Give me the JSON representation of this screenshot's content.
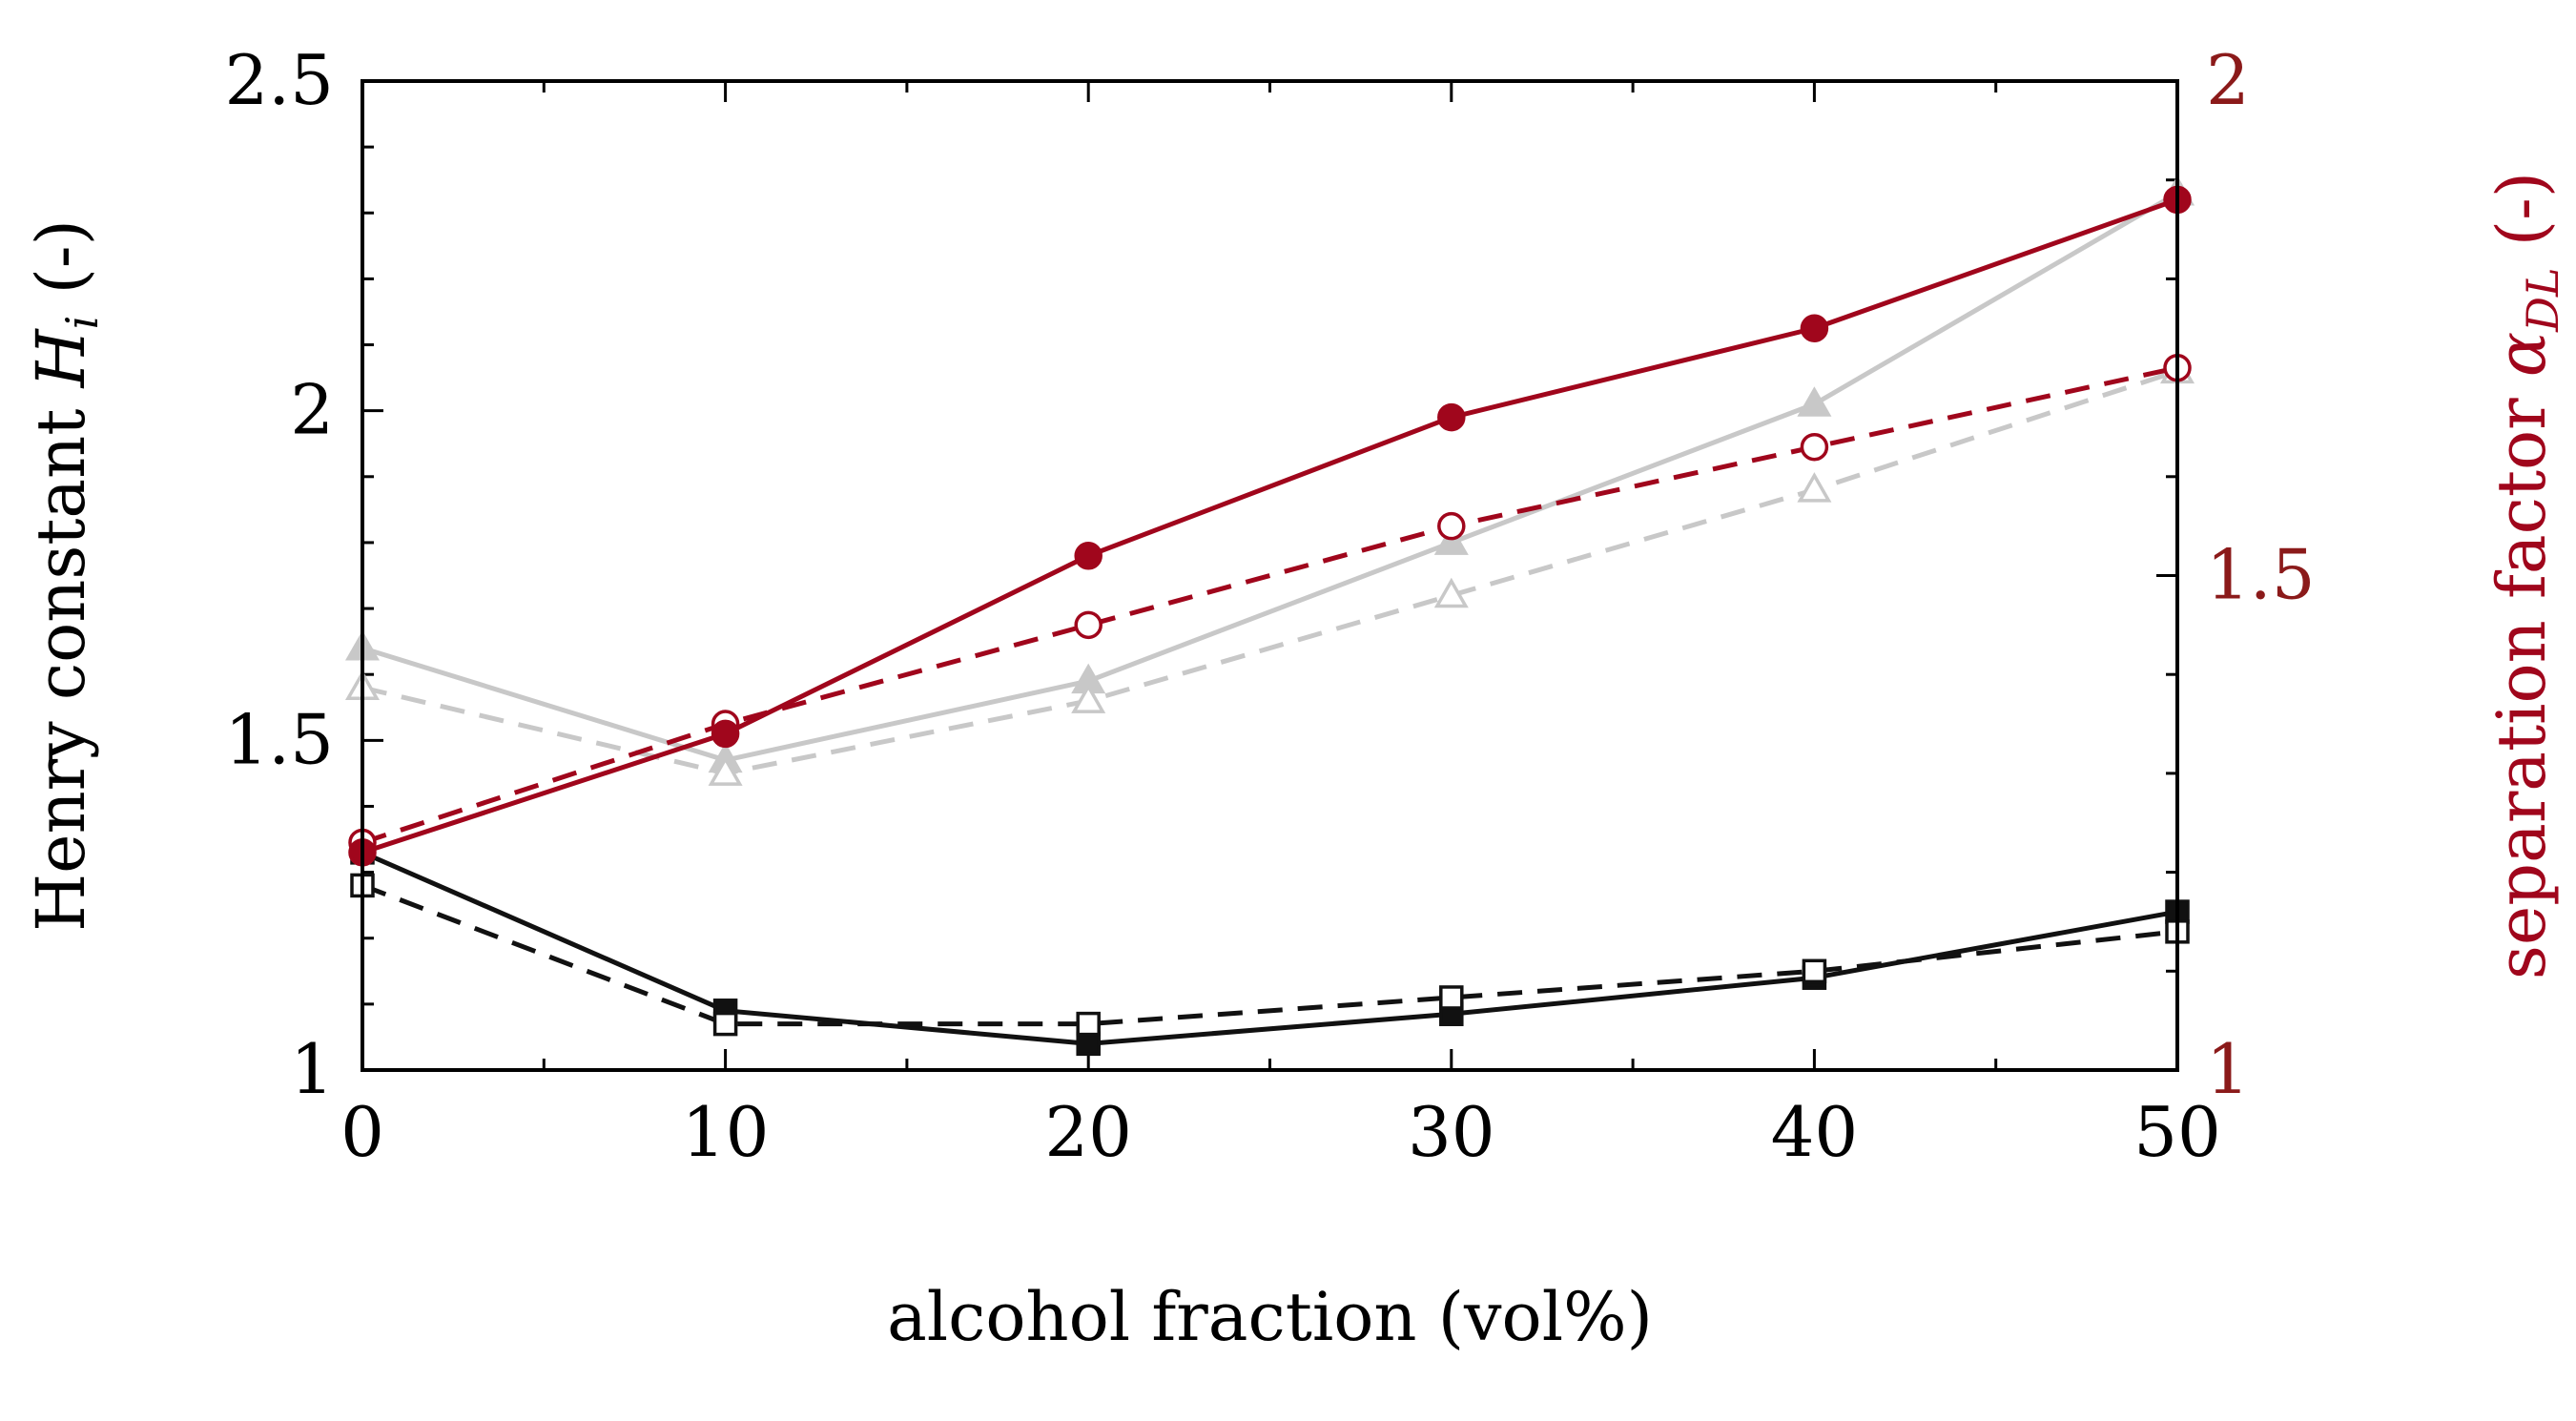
{
  "chart_data": {
    "type": "line",
    "title": "",
    "xlabel": "alcohol fraction (vol%)",
    "ylabel_left": "Henry constant H_i (-)",
    "ylabel_right": "separation factor α_DL (-)",
    "ylabel_left_parts": {
      "text": "Henry constant ",
      "symbol": "H",
      "subscript": "i",
      "suffix": " (-)"
    },
    "ylabel_right_parts": {
      "text": "separation factor ",
      "symbol": "α",
      "subscript": "DL",
      "suffix": " (-)"
    },
    "xlim": [
      0,
      50
    ],
    "ylim_left": [
      1,
      2.5
    ],
    "ylim_right": [
      1,
      2
    ],
    "x_ticks": [
      "0",
      "10",
      "20",
      "30",
      "40",
      "50"
    ],
    "y_left_ticks": [
      "1",
      "1.5",
      "2",
      "2.5"
    ],
    "y_right_ticks": [
      "1",
      "1.5",
      "2"
    ],
    "x": [
      0,
      10,
      20,
      30,
      40,
      50
    ],
    "colors": {
      "black": "#111111",
      "gray": "#c8c8c8",
      "red": "#a0061c",
      "right_axis": "#8b1a1a"
    },
    "series": [
      {
        "name": "H black solid",
        "axis": "left",
        "color": "black",
        "dash": false,
        "marker": "square",
        "filled": true,
        "values": [
          1.33,
          1.09,
          1.04,
          1.085,
          1.14,
          1.24
        ]
      },
      {
        "name": "H black dashed",
        "axis": "left",
        "color": "black",
        "dash": true,
        "marker": "square",
        "filled": false,
        "values": [
          1.28,
          1.07,
          1.07,
          1.11,
          1.15,
          1.21
        ]
      },
      {
        "name": "H gray solid",
        "axis": "left",
        "color": "gray",
        "dash": false,
        "marker": "triangle",
        "filled": true,
        "values": [
          1.64,
          1.47,
          1.59,
          1.8,
          2.01,
          2.33
        ]
      },
      {
        "name": "H gray dashed",
        "axis": "left",
        "color": "gray",
        "dash": true,
        "marker": "triangle",
        "filled": false,
        "values": [
          1.58,
          1.45,
          1.56,
          1.72,
          1.88,
          2.06
        ]
      },
      {
        "name": "alpha red solid",
        "axis": "right",
        "color": "red",
        "dash": false,
        "marker": "circle",
        "filled": true,
        "values": [
          1.22,
          1.34,
          1.52,
          1.66,
          1.75,
          1.88
        ]
      },
      {
        "name": "alpha red dashed",
        "axis": "right",
        "color": "red",
        "dash": true,
        "marker": "circle",
        "filled": false,
        "values": [
          1.23,
          1.35,
          1.45,
          1.55,
          1.63,
          1.71
        ]
      }
    ]
  }
}
